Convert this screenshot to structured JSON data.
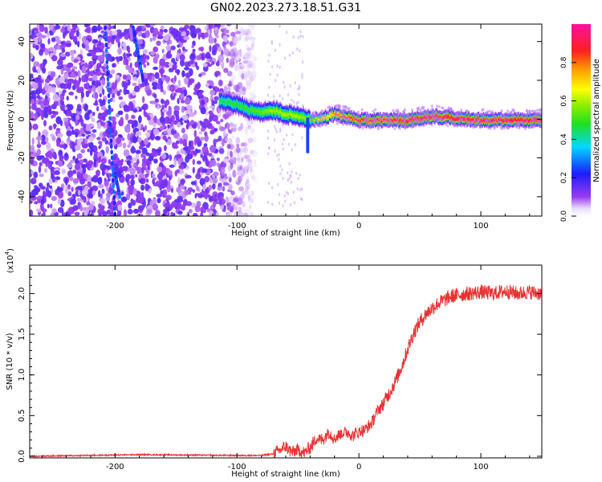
{
  "title": "GN02.2023.273.18.51.G31",
  "colors": {
    "snr_line": "#e83232",
    "axis": "#000000"
  },
  "chart_data": [
    {
      "type": "heatmap",
      "xlabel": "Height of straight line (km)",
      "ylabel": "Frequency (Hz)",
      "xlim": [
        -270,
        150
      ],
      "ylim": [
        -50,
        49
      ],
      "x_ticks": [
        -200,
        -100,
        0,
        100
      ],
      "y_ticks": [
        40,
        20,
        0,
        -20,
        -40
      ],
      "colorbar": {
        "label": "Normalized spectral amplitude",
        "range": [
          0,
          1
        ],
        "ticks": [
          "0.0",
          "0.2",
          "0.4",
          "0.6",
          "0.8"
        ],
        "tick_values": [
          0.0,
          0.2,
          0.4,
          0.6,
          0.8
        ],
        "colormap": "rainbow (white-violet-blue-cyan-green-yellow-orange-red-magenta)"
      },
      "ridge": {
        "x": [
          -115,
          -100,
          -90,
          -80,
          -70,
          -60,
          -50,
          -40,
          -30,
          -20,
          0,
          20,
          40,
          60,
          80,
          100,
          120,
          150
        ],
        "frequency": [
          10,
          8,
          5,
          4,
          5,
          3,
          2,
          0,
          1,
          3,
          0,
          0,
          0,
          2,
          1,
          0,
          0,
          0
        ],
        "amplitude": [
          0.45,
          0.5,
          0.5,
          0.55,
          0.6,
          0.6,
          0.6,
          0.55,
          0.7,
          0.8,
          0.9,
          0.9,
          0.95,
          0.95,
          0.95,
          0.95,
          0.95,
          0.95
        ]
      }
    },
    {
      "type": "line",
      "xlabel": "Height of straight line (km)",
      "ylabel": "SNR (10 * v/v)",
      "y_multiplier": "(x10",
      "y_multiplier_exp": "4",
      "y_multiplier_close": ")",
      "xlim": [
        -270,
        150
      ],
      "ylim": [
        -0.02,
        2.35
      ],
      "x_ticks": [
        -200,
        -100,
        0,
        100
      ],
      "y_ticks": [
        "0.0",
        "0.5",
        "1.0",
        "1.5",
        "2.0"
      ],
      "y_tick_values": [
        0.0,
        0.5,
        1.0,
        1.5,
        2.0
      ],
      "series": [
        {
          "x": [
            -270,
            -180,
            -100,
            -80,
            -70,
            -60,
            -55,
            -50,
            -45,
            -40,
            -35,
            -30,
            -25,
            -20,
            -15,
            -10,
            -5,
            0,
            5,
            10,
            15,
            20,
            25,
            30,
            35,
            40,
            45,
            50,
            55,
            60,
            65,
            70,
            75,
            80,
            90,
            100,
            110,
            120,
            130,
            140,
            150
          ],
          "y": [
            0.0,
            0.02,
            0.01,
            0.01,
            0.03,
            0.12,
            0.05,
            0.08,
            0.04,
            0.1,
            0.22,
            0.2,
            0.3,
            0.22,
            0.28,
            0.3,
            0.26,
            0.3,
            0.33,
            0.4,
            0.55,
            0.65,
            0.78,
            0.92,
            1.1,
            1.32,
            1.52,
            1.65,
            1.75,
            1.82,
            1.88,
            1.92,
            1.96,
            1.98,
            2.0,
            2.02,
            2.0,
            2.03,
            2.0,
            2.02,
            2.0
          ]
        }
      ]
    }
  ]
}
